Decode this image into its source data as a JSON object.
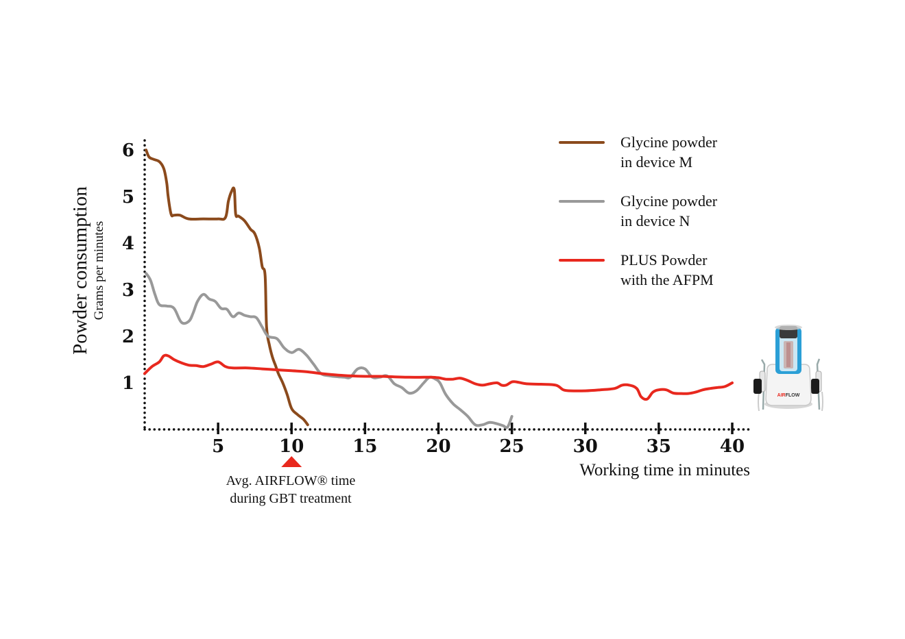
{
  "chart_data": {
    "type": "line",
    "ylabel": "Powder consumption",
    "ylabel_sub": "Grams per minutes",
    "xlabel": "Working time in minutes",
    "xlim": [
      0,
      41.5
    ],
    "ylim": [
      0,
      6.2
    ],
    "x_ticks": [
      {
        "value": 5,
        "label": "5"
      },
      {
        "value": 10,
        "label": "10",
        "highlight": true
      },
      {
        "value": 15,
        "label": "15"
      },
      {
        "value": 20,
        "label": "20"
      },
      {
        "value": 25,
        "label": "25"
      },
      {
        "value": 30,
        "label": "30"
      },
      {
        "value": 35,
        "label": "35"
      },
      {
        "value": 40,
        "label": "40"
      }
    ],
    "y_ticks": [
      {
        "value": 1,
        "label": "1"
      },
      {
        "value": 2,
        "label": "2"
      },
      {
        "value": 3,
        "label": "3"
      },
      {
        "value": 4,
        "label": "4"
      },
      {
        "value": 5,
        "label": "5"
      },
      {
        "value": 6,
        "label": "6"
      }
    ],
    "annotation": {
      "x": 10,
      "line1": "Avg. AIRFLOW® time",
      "line2": "during GBT treatment",
      "color": "#e8281e"
    },
    "series": [
      {
        "name_line1": "Glycine powder",
        "name_line2": "in device M",
        "color": "#8b4a1c",
        "x": [
          0.1,
          0.3,
          0.6,
          1.0,
          1.3,
          1.5,
          1.6,
          1.8,
          2.0,
          2.4,
          3.0,
          4.0,
          5.0,
          5.5,
          5.7,
          5.9,
          6.1,
          6.2,
          6.4,
          6.8,
          7.2,
          7.5,
          7.8,
          8.0,
          8.2,
          8.3,
          8.5,
          8.7,
          8.9,
          9.1,
          9.4,
          9.7,
          10.0,
          10.4,
          10.8,
          11.1
        ],
        "y": [
          6.0,
          5.85,
          5.8,
          5.75,
          5.6,
          5.3,
          5.0,
          4.62,
          4.6,
          4.6,
          4.52,
          4.52,
          4.52,
          4.55,
          4.9,
          5.1,
          5.15,
          4.62,
          4.58,
          4.48,
          4.3,
          4.2,
          3.9,
          3.5,
          3.3,
          2.2,
          1.8,
          1.55,
          1.38,
          1.2,
          1.0,
          0.75,
          0.45,
          0.32,
          0.22,
          0.1
        ]
      },
      {
        "name_line1": "Glycine powder",
        "name_line2": "in device N",
        "color": "#999999",
        "x": [
          0.1,
          0.4,
          0.7,
          1.0,
          1.5,
          2.0,
          2.5,
          3.0,
          3.3,
          3.6,
          4.0,
          4.4,
          4.8,
          5.2,
          5.6,
          6.0,
          6.4,
          6.8,
          7.2,
          7.6,
          8.0,
          8.4,
          9.0,
          9.5,
          10.0,
          10.5,
          11.0,
          11.5,
          12.0,
          12.6,
          13.2,
          13.6,
          14.0,
          14.5,
          15.0,
          15.5,
          16.0,
          16.5,
          17.0,
          17.5,
          18.0,
          18.5,
          19.0,
          19.4,
          19.8,
          20.1,
          20.5,
          21.0,
          21.5,
          22.0,
          22.5,
          23.0,
          23.5,
          24.0,
          24.4,
          24.7,
          25.0
        ],
        "y": [
          3.35,
          3.2,
          2.9,
          2.68,
          2.65,
          2.6,
          2.3,
          2.32,
          2.5,
          2.75,
          2.9,
          2.8,
          2.75,
          2.6,
          2.58,
          2.42,
          2.5,
          2.45,
          2.42,
          2.4,
          2.2,
          2.0,
          1.95,
          1.75,
          1.65,
          1.72,
          1.6,
          1.4,
          1.2,
          1.15,
          1.13,
          1.12,
          1.12,
          1.3,
          1.3,
          1.12,
          1.12,
          1.15,
          0.98,
          0.9,
          0.78,
          0.83,
          1.0,
          1.12,
          1.08,
          1.0,
          0.75,
          0.55,
          0.42,
          0.28,
          0.1,
          0.1,
          0.15,
          0.12,
          0.08,
          0.05,
          0.28
        ]
      },
      {
        "name_line1": "PLUS Powder",
        "name_line2": "with the AFPM",
        "color": "#e8281e",
        "x": [
          0.0,
          0.5,
          1.0,
          1.3,
          1.6,
          2.0,
          2.5,
          3.0,
          3.5,
          4.0,
          4.5,
          5.0,
          5.5,
          6.0,
          7.0,
          8.0,
          9.0,
          10.0,
          11.0,
          12.0,
          13.0,
          14.0,
          15.0,
          16.0,
          17.0,
          18.0,
          19.0,
          19.5,
          20.0,
          20.5,
          21.0,
          21.5,
          22.0,
          22.5,
          23.0,
          23.5,
          24.0,
          24.3,
          24.6,
          25.0,
          25.3,
          26.0,
          27.0,
          28.0,
          28.5,
          29.0,
          30.0,
          31.0,
          32.0,
          32.5,
          33.0,
          33.5,
          33.8,
          34.2,
          34.6,
          35.0,
          35.5,
          36.0,
          36.5,
          37.0,
          37.5,
          38.0,
          38.5,
          39.0,
          39.5,
          40.0
        ],
        "y": [
          1.2,
          1.35,
          1.45,
          1.58,
          1.58,
          1.5,
          1.43,
          1.38,
          1.37,
          1.35,
          1.4,
          1.45,
          1.35,
          1.32,
          1.32,
          1.3,
          1.28,
          1.26,
          1.24,
          1.2,
          1.17,
          1.15,
          1.14,
          1.14,
          1.13,
          1.12,
          1.12,
          1.12,
          1.11,
          1.08,
          1.08,
          1.1,
          1.05,
          0.98,
          0.95,
          0.98,
          1.0,
          0.95,
          0.95,
          1.02,
          1.02,
          0.98,
          0.97,
          0.95,
          0.85,
          0.83,
          0.83,
          0.85,
          0.88,
          0.95,
          0.95,
          0.88,
          0.7,
          0.65,
          0.8,
          0.85,
          0.85,
          0.78,
          0.77,
          0.77,
          0.8,
          0.85,
          0.88,
          0.9,
          0.92,
          1.0
        ]
      }
    ]
  },
  "device_image": {
    "brand_text": "AIRFLOW",
    "brand_part1": "AIR",
    "brand_part2": "FLOW"
  }
}
